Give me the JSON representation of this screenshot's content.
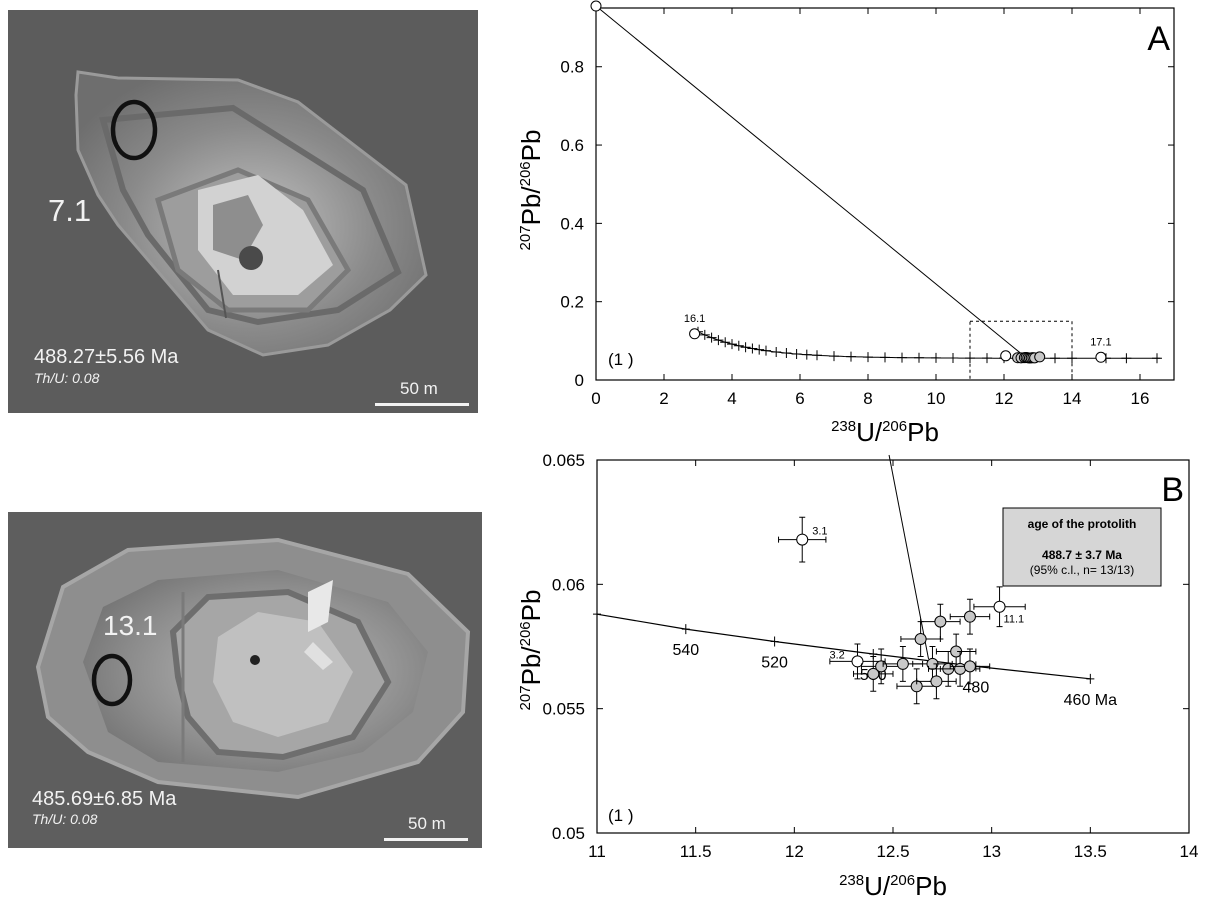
{
  "images": [
    {
      "spot_label": "7.1",
      "age_text": "488.27±5.56 Ma",
      "thu_text": "Th/U: 0.08",
      "scale_text": "50   m"
    },
    {
      "spot_label": "13.1",
      "age_text": "485.69±6.85 Ma",
      "thu_text": "Th/U: 0.08",
      "scale_text": "50   m"
    }
  ],
  "chart_data": [
    {
      "type": "scatter",
      "panel_label": "A",
      "corner_note": "(1  )",
      "xlabel": {
        "mass_a": "238",
        "elem_a": "U/",
        "mass_b": "206",
        "elem_b": "Pb"
      },
      "ylabel": {
        "mass_a": "207",
        "elem_a": "Pb/",
        "mass_b": "206",
        "elem_b": "Pb"
      },
      "xlim": [
        0,
        17
      ],
      "ylim": [
        0,
        0.95
      ],
      "xticks": [
        "0",
        "2",
        "4",
        "6",
        "8",
        "10",
        "12",
        "14",
        "16"
      ],
      "yticks": [
        "0",
        "0.2",
        "0.4",
        "0.6",
        "0.8"
      ],
      "concordia_markers_x": [
        3.0,
        3.2,
        3.4,
        3.6,
        3.8,
        4.0,
        4.2,
        4.4,
        4.6,
        4.8,
        5.0,
        5.3,
        5.6,
        5.9,
        6.2,
        6.5,
        7.0,
        7.5,
        8.0,
        8.5,
        9.0,
        9.5,
        10.0,
        10.5,
        11.0,
        11.5,
        12.0,
        13.5,
        14.0,
        15.0,
        15.6,
        16.5
      ],
      "discordia": [
        [
          0,
          0.955
        ],
        [
          12.65,
          0.057
        ]
      ],
      "points": [
        {
          "x": 0.0,
          "y": 0.955
        },
        {
          "x": 2.9,
          "y": 0.118,
          "label": "16.1"
        },
        {
          "x": 12.05,
          "y": 0.0618
        },
        {
          "x": 12.4,
          "y": 0.0568
        },
        {
          "x": 12.5,
          "y": 0.0565
        },
        {
          "x": 12.6,
          "y": 0.057
        },
        {
          "x": 12.65,
          "y": 0.0575
        },
        {
          "x": 12.7,
          "y": 0.0568
        },
        {
          "x": 12.75,
          "y": 0.0562
        },
        {
          "x": 12.8,
          "y": 0.0566
        },
        {
          "x": 12.85,
          "y": 0.057
        },
        {
          "x": 12.9,
          "y": 0.0565
        },
        {
          "x": 13.05,
          "y": 0.059
        },
        {
          "x": 14.85,
          "y": 0.058,
          "label": "17.1"
        }
      ],
      "inset_box": {
        "x": [
          11,
          14
        ],
        "y": [
          0,
          0.15
        ]
      }
    },
    {
      "type": "scatter",
      "panel_label": "B",
      "corner_note": "(1  )",
      "xlabel": {
        "mass_a": "238",
        "elem_a": "U/",
        "mass_b": "206",
        "elem_b": "Pb"
      },
      "ylabel": {
        "mass_a": "207",
        "elem_a": "Pb/",
        "mass_b": "206",
        "elem_b": "Pb"
      },
      "xlim": [
        11,
        14
      ],
      "ylim": [
        0.05,
        0.065
      ],
      "xticks": [
        "11",
        "11.5",
        "12",
        "12.5",
        "13",
        "13.5",
        "14"
      ],
      "yticks": [
        "0.05",
        "0.055",
        "0.06",
        "0.065"
      ],
      "concordia": [
        [
          11.0,
          0.0588
        ],
        [
          11.45,
          0.0582
        ],
        [
          11.9,
          0.0577
        ],
        [
          12.4,
          0.0572
        ],
        [
          12.92,
          0.0567
        ],
        [
          13.5,
          0.0562
        ]
      ],
      "concordia_ticks": [
        {
          "x": 11.0,
          "y": 0.0588,
          "label": ""
        },
        {
          "x": 11.45,
          "y": 0.0582,
          "label": "540"
        },
        {
          "x": 11.9,
          "y": 0.0577,
          "label": "520"
        },
        {
          "x": 12.4,
          "y": 0.0572,
          "label": "500"
        },
        {
          "x": 12.92,
          "y": 0.0567,
          "label": "480"
        },
        {
          "x": 13.5,
          "y": 0.0562,
          "label": "460 Ma"
        }
      ],
      "discordia": [
        [
          12.48,
          0.0652
        ],
        [
          12.68,
          0.057
        ]
      ],
      "points": [
        {
          "x": 12.04,
          "y": 0.0618,
          "ex": 0.12,
          "ey": 0.0009,
          "label": "3.1",
          "fill": "#ffffff"
        },
        {
          "x": 12.32,
          "y": 0.0569,
          "ex": 0.14,
          "ey": 0.0007,
          "label": "3.2",
          "fill": "#ffffff"
        },
        {
          "x": 13.04,
          "y": 0.0591,
          "ex": 0.13,
          "ey": 0.0008,
          "label": "11.1",
          "fill": "#ffffff"
        },
        {
          "x": 12.4,
          "y": 0.0564,
          "ex": 0.1,
          "ey": 0.0007,
          "fill": "#c8c8c8"
        },
        {
          "x": 12.44,
          "y": 0.0567,
          "ex": 0.1,
          "ey": 0.0007,
          "fill": "#c8c8c8"
        },
        {
          "x": 12.55,
          "y": 0.0568,
          "ex": 0.1,
          "ey": 0.0007,
          "fill": "#c8c8c8"
        },
        {
          "x": 12.62,
          "y": 0.0559,
          "ex": 0.1,
          "ey": 0.0007,
          "fill": "#c8c8c8"
        },
        {
          "x": 12.64,
          "y": 0.0578,
          "ex": 0.1,
          "ey": 0.0007,
          "fill": "#c8c8c8"
        },
        {
          "x": 12.7,
          "y": 0.0568,
          "ex": 0.1,
          "ey": 0.0007,
          "fill": "#c8c8c8"
        },
        {
          "x": 12.72,
          "y": 0.0561,
          "ex": 0.1,
          "ey": 0.0007,
          "fill": "#c8c8c8"
        },
        {
          "x": 12.74,
          "y": 0.0585,
          "ex": 0.1,
          "ey": 0.0007,
          "fill": "#c8c8c8"
        },
        {
          "x": 12.78,
          "y": 0.0566,
          "ex": 0.1,
          "ey": 0.0007,
          "fill": "#c8c8c8"
        },
        {
          "x": 12.82,
          "y": 0.0573,
          "ex": 0.1,
          "ey": 0.0007,
          "fill": "#c8c8c8"
        },
        {
          "x": 12.84,
          "y": 0.0566,
          "ex": 0.1,
          "ey": 0.0007,
          "fill": "#c8c8c8"
        },
        {
          "x": 12.89,
          "y": 0.0587,
          "ex": 0.1,
          "ey": 0.0007,
          "fill": "#c8c8c8"
        },
        {
          "x": 12.89,
          "y": 0.0567,
          "ex": 0.1,
          "ey": 0.0007,
          "fill": "#c8c8c8"
        }
      ],
      "legend_box": {
        "title": "age of the protolith",
        "age": "488.7 ± 3.7 Ma",
        "note": "(95% c.l., n= 13/13)"
      }
    }
  ]
}
